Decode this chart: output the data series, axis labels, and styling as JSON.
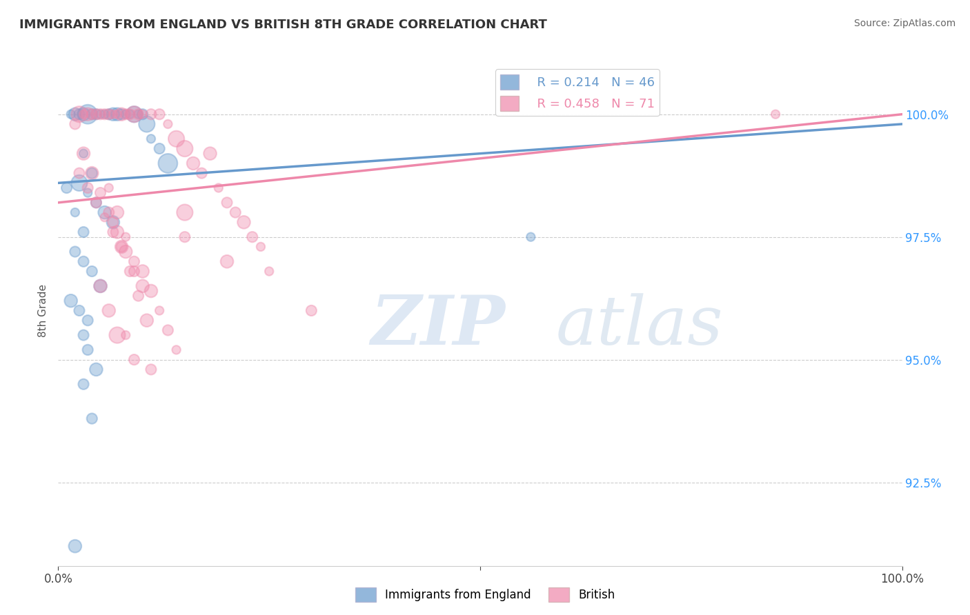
{
  "title": "IMMIGRANTS FROM ENGLAND VS BRITISH 8TH GRADE CORRELATION CHART",
  "source_text": "Source: ZipAtlas.com",
  "ylabel": "8th Grade",
  "legend_labels": [
    "Immigrants from England",
    "British"
  ],
  "r_blue": 0.214,
  "n_blue": 46,
  "r_pink": 0.458,
  "n_pink": 71,
  "xlim": [
    0.0,
    100.0
  ],
  "ylim": [
    90.8,
    101.2
  ],
  "yticks": [
    92.5,
    95.0,
    97.5,
    100.0
  ],
  "ytick_labels": [
    "92.5%",
    "95.0%",
    "97.5%",
    "100.0%"
  ],
  "xtick_positions": [
    0,
    50,
    100
  ],
  "xtick_labels": [
    "0.0%",
    "",
    "100.0%"
  ],
  "watermark_zip": "ZIP",
  "watermark_atlas": "atlas",
  "background_color": "#ffffff",
  "blue_color": "#6699cc",
  "pink_color": "#ee88aa",
  "grid_color": "#cccccc",
  "blue_line_intercept": 98.6,
  "blue_line_slope": 0.012,
  "pink_line_intercept": 98.2,
  "pink_line_slope": 0.018,
  "blue_points_x": [
    1.5,
    2.0,
    2.5,
    3.0,
    3.5,
    4.0,
    4.5,
    5.0,
    5.5,
    6.0,
    6.5,
    7.0,
    7.5,
    8.0,
    8.5,
    9.0,
    9.5,
    10.0,
    10.5,
    11.0,
    12.0,
    13.0,
    3.0,
    4.0,
    2.5,
    3.5,
    4.5,
    5.5,
    6.5,
    1.0,
    2.0,
    3.0,
    2.0,
    3.0,
    4.0,
    5.0,
    1.5,
    2.5,
    3.5,
    56.0,
    3.0,
    3.5,
    4.5,
    3.0,
    4.0,
    2.0
  ],
  "blue_points_y": [
    100.0,
    100.0,
    100.0,
    100.0,
    100.0,
    100.0,
    100.0,
    100.0,
    100.0,
    100.0,
    100.0,
    100.0,
    100.0,
    100.0,
    100.0,
    100.0,
    100.0,
    100.0,
    99.8,
    99.5,
    99.3,
    99.0,
    99.2,
    98.8,
    98.6,
    98.4,
    98.2,
    98.0,
    97.8,
    98.5,
    98.0,
    97.6,
    97.2,
    97.0,
    96.8,
    96.5,
    96.2,
    96.0,
    95.8,
    97.5,
    95.5,
    95.2,
    94.8,
    94.5,
    93.8,
    91.2
  ],
  "pink_points_x": [
    2.0,
    2.5,
    3.0,
    3.5,
    4.0,
    4.5,
    5.0,
    5.5,
    6.0,
    6.5,
    7.0,
    7.5,
    8.0,
    8.5,
    9.0,
    9.5,
    10.0,
    11.0,
    12.0,
    13.0,
    14.0,
    15.0,
    16.0,
    17.0,
    18.0,
    19.0,
    20.0,
    21.0,
    22.0,
    23.0,
    24.0,
    2.5,
    3.5,
    4.5,
    5.5,
    6.5,
    7.5,
    3.0,
    4.0,
    5.0,
    6.0,
    7.0,
    8.0,
    9.0,
    10.0,
    15.0,
    6.0,
    7.0,
    8.0,
    9.0,
    10.0,
    11.0,
    12.0,
    13.0,
    14.0,
    6.5,
    7.5,
    8.5,
    9.5,
    10.5,
    5.0,
    6.0,
    8.0,
    9.0,
    11.0,
    25.0,
    30.0,
    15.0,
    20.0,
    7.0,
    85.0
  ],
  "pink_points_y": [
    99.8,
    100.0,
    100.0,
    100.0,
    100.0,
    100.0,
    100.0,
    100.0,
    100.0,
    100.0,
    100.0,
    100.0,
    100.0,
    100.0,
    100.0,
    100.0,
    100.0,
    100.0,
    100.0,
    99.8,
    99.5,
    99.3,
    99.0,
    98.8,
    99.2,
    98.5,
    98.2,
    98.0,
    97.8,
    97.5,
    97.3,
    98.8,
    98.5,
    98.2,
    97.9,
    97.6,
    97.3,
    99.2,
    98.8,
    98.4,
    98.0,
    97.6,
    97.2,
    96.8,
    96.5,
    98.0,
    98.5,
    98.0,
    97.5,
    97.0,
    96.8,
    96.4,
    96.0,
    95.6,
    95.2,
    97.8,
    97.3,
    96.8,
    96.3,
    95.8,
    96.5,
    96.0,
    95.5,
    95.0,
    94.8,
    96.8,
    96.0,
    97.5,
    97.0,
    95.5,
    100.0
  ]
}
